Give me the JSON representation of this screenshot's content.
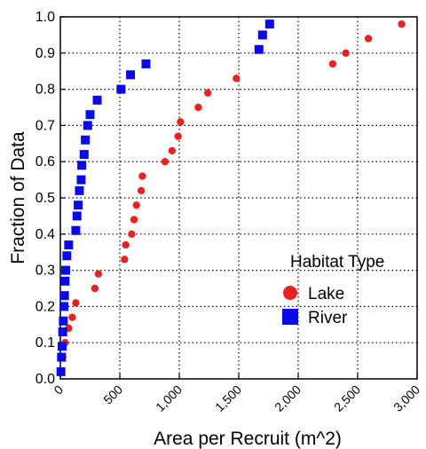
{
  "chart_data": {
    "type": "scatter",
    "xlabel": "Area per Recruit (m^2)",
    "ylabel": "Fraction of Data",
    "xlim": [
      0,
      3000
    ],
    "ylim": [
      0,
      1.0
    ],
    "x_ticks": [
      "0",
      "500",
      "1,000",
      "1,500",
      "2,000",
      "2,500",
      "3,000"
    ],
    "x_tick_values": [
      0,
      500,
      1000,
      1500,
      2000,
      2500,
      3000
    ],
    "y_ticks": [
      "0.0",
      "0.1",
      "0.2",
      "0.3",
      "0.4",
      "0.5",
      "0.6",
      "0.7",
      "0.8",
      "0.9",
      "1.0"
    ],
    "y_tick_values": [
      0,
      0.1,
      0.2,
      0.3,
      0.4,
      0.5,
      0.6,
      0.7,
      0.8,
      0.9,
      1.0
    ],
    "grid": "dotted",
    "legend_placement": "bottom-right",
    "legend_title": "Habitat Type",
    "series": [
      {
        "name": "Lake",
        "marker": "circle",
        "color": "#e8231e",
        "points": [
          [
            10,
            0.02
          ],
          [
            20,
            0.06
          ],
          [
            40,
            0.1
          ],
          [
            70,
            0.14
          ],
          [
            100,
            0.17
          ],
          [
            130,
            0.21
          ],
          [
            290,
            0.25
          ],
          [
            320,
            0.29
          ],
          [
            540,
            0.33
          ],
          [
            550,
            0.37
          ],
          [
            600,
            0.4
          ],
          [
            620,
            0.44
          ],
          [
            640,
            0.48
          ],
          [
            680,
            0.52
          ],
          [
            690,
            0.56
          ],
          [
            880,
            0.6
          ],
          [
            940,
            0.63
          ],
          [
            990,
            0.67
          ],
          [
            1010,
            0.71
          ],
          [
            1160,
            0.75
          ],
          [
            1240,
            0.79
          ],
          [
            1480,
            0.83
          ],
          [
            2290,
            0.87
          ],
          [
            2400,
            0.9
          ],
          [
            2590,
            0.94
          ],
          [
            2870,
            0.98
          ]
        ]
      },
      {
        "name": "River",
        "marker": "square",
        "color": "#0a0ae6",
        "points": [
          [
            5,
            0.02
          ],
          [
            10,
            0.06
          ],
          [
            15,
            0.09
          ],
          [
            20,
            0.13
          ],
          [
            25,
            0.16
          ],
          [
            30,
            0.2
          ],
          [
            35,
            0.23
          ],
          [
            40,
            0.27
          ],
          [
            45,
            0.3
          ],
          [
            55,
            0.34
          ],
          [
            70,
            0.37
          ],
          [
            130,
            0.41
          ],
          [
            140,
            0.45
          ],
          [
            150,
            0.48
          ],
          [
            160,
            0.52
          ],
          [
            175,
            0.55
          ],
          [
            180,
            0.59
          ],
          [
            200,
            0.62
          ],
          [
            210,
            0.66
          ],
          [
            230,
            0.7
          ],
          [
            250,
            0.73
          ],
          [
            310,
            0.77
          ],
          [
            510,
            0.8
          ],
          [
            590,
            0.84
          ],
          [
            720,
            0.87
          ],
          [
            1670,
            0.91
          ],
          [
            1700,
            0.95
          ],
          [
            1760,
            0.98
          ]
        ]
      }
    ]
  }
}
